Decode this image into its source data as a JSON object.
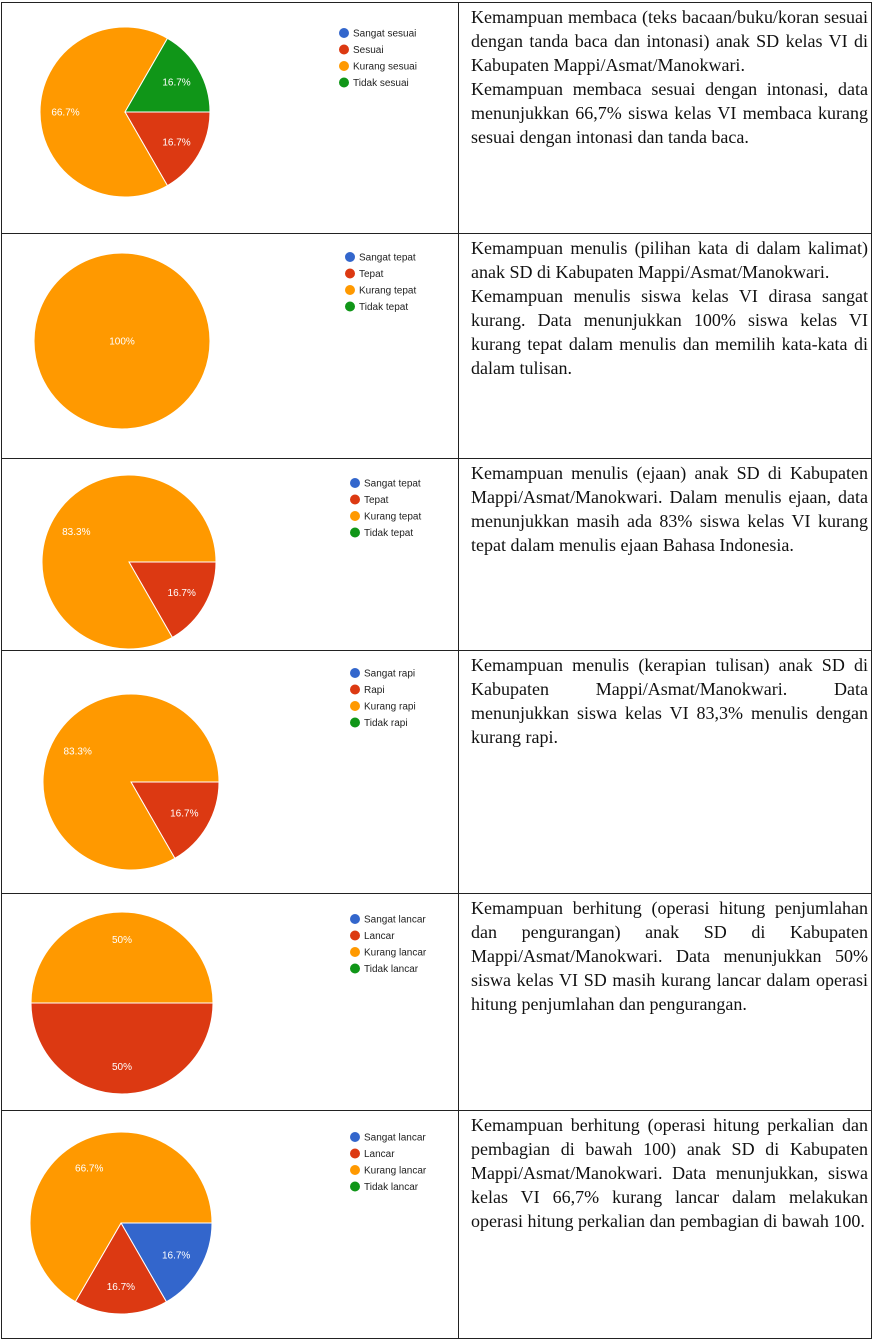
{
  "rows": [
    {
      "chart": {
        "type": "pie",
        "categories": [
          "Sangat sesuai",
          "Sesuai",
          "Kurang sesuai",
          "Tidak sesuai"
        ],
        "colors": [
          "#3366cc",
          "#dc3912",
          "#ff9900",
          "#109618"
        ],
        "values": [
          0,
          16.7,
          66.7,
          16.7
        ],
        "value_labels": [
          null,
          "16.7%",
          "66.7%",
          "16.7%"
        ]
      },
      "paragraphs": [
        "Kemampuan membaca (teks bacaan/buku/koran sesuai dengan tanda baca dan intonasi) anak SD kelas VI di Kabupaten Mappi/Asmat/Manokwari.",
        "Kemampuan membaca sesuai dengan intonasi, data menunjukkan 66,7% siswa kelas VI membaca kurang sesuai dengan intonasi dan tanda baca."
      ]
    },
    {
      "chart": {
        "type": "pie",
        "categories": [
          "Sangat tepat",
          "Tepat",
          "Kurang tepat",
          "Tidak tepat"
        ],
        "colors": [
          "#3366cc",
          "#dc3912",
          "#ff9900",
          "#109618"
        ],
        "values": [
          0,
          0,
          100,
          0
        ],
        "value_labels": [
          null,
          null,
          "100%",
          null
        ]
      },
      "paragraphs": [
        "Kemampuan menulis (pilihan kata di dalam kalimat) anak SD di Kabupaten Mappi/Asmat/Manokwari.",
        "Kemampuan menulis siswa kelas VI dirasa sangat kurang. Data menunjukkan 100% siswa kelas VI kurang tepat dalam menulis dan memilih kata-kata di dalam tulisan."
      ]
    },
    {
      "chart": {
        "type": "pie",
        "categories": [
          "Sangat tepat",
          "Tepat",
          "Kurang tepat",
          "Tidak tepat"
        ],
        "colors": [
          "#3366cc",
          "#dc3912",
          "#ff9900",
          "#109618"
        ],
        "values": [
          0,
          16.7,
          83.3,
          0
        ],
        "value_labels": [
          null,
          "16.7%",
          "83.3%",
          null
        ]
      },
      "paragraphs": [
        "Kemampuan menulis (ejaan) anak SD di Kabupaten Mappi/Asmat/Manokwari. Dalam menulis ejaan, data menunjukkan masih ada 83% siswa kelas VI kurang tepat dalam menulis ejaan Bahasa Indonesia."
      ]
    },
    {
      "chart": {
        "type": "pie",
        "categories": [
          "Sangat rapi",
          "Rapi",
          "Kurang rapi",
          "Tidak rapi"
        ],
        "colors": [
          "#3366cc",
          "#dc3912",
          "#ff9900",
          "#109618"
        ],
        "values": [
          0,
          16.7,
          83.3,
          0
        ],
        "value_labels": [
          null,
          "16.7%",
          "83.3%",
          null
        ]
      },
      "paragraphs": [
        "Kemampuan menulis (kerapian tulisan) anak SD di Kabupaten Mappi/Asmat/Manokwari. Data menunjukkan siswa kelas VI 83,3% menulis dengan kurang rapi."
      ]
    },
    {
      "chart": {
        "type": "pie",
        "categories": [
          "Sangat lancar",
          "Lancar",
          "Kurang lancar",
          "Tidak lancar"
        ],
        "colors": [
          "#3366cc",
          "#dc3912",
          "#ff9900",
          "#109618"
        ],
        "values": [
          0,
          50,
          50,
          0
        ],
        "value_labels": [
          null,
          "50%",
          "50%",
          null
        ]
      },
      "paragraphs": [
        "Kemampuan berhitung (operasi hitung penjumlahan dan pengurangan) anak SD di Kabupaten Mappi/Asmat/Manokwari. Data menunjukkan 50% siswa kelas VI SD masih kurang lancar dalam operasi hitung penjumlahan dan pengurangan."
      ]
    },
    {
      "chart": {
        "type": "pie",
        "categories": [
          "Sangat lancar",
          "Lancar",
          "Kurang lancar",
          "Tidak lancar"
        ],
        "colors": [
          "#3366cc",
          "#dc3912",
          "#ff9900",
          "#109618"
        ],
        "values": [
          16.7,
          16.7,
          66.7,
          0
        ],
        "value_labels": [
          "16.7%",
          "16.7%",
          "66.7%",
          null
        ]
      },
      "paragraphs": [
        "Kemampuan berhitung (operasi hitung perkalian dan pembagian di bawah 100) anak SD di Kabupaten Mappi/Asmat/Manokwari. Data menunjukkan, siswa kelas VI 66,7% kurang lancar dalam melakukan operasi hitung perkalian dan pembagian di bawah 100."
      ]
    }
  ]
}
